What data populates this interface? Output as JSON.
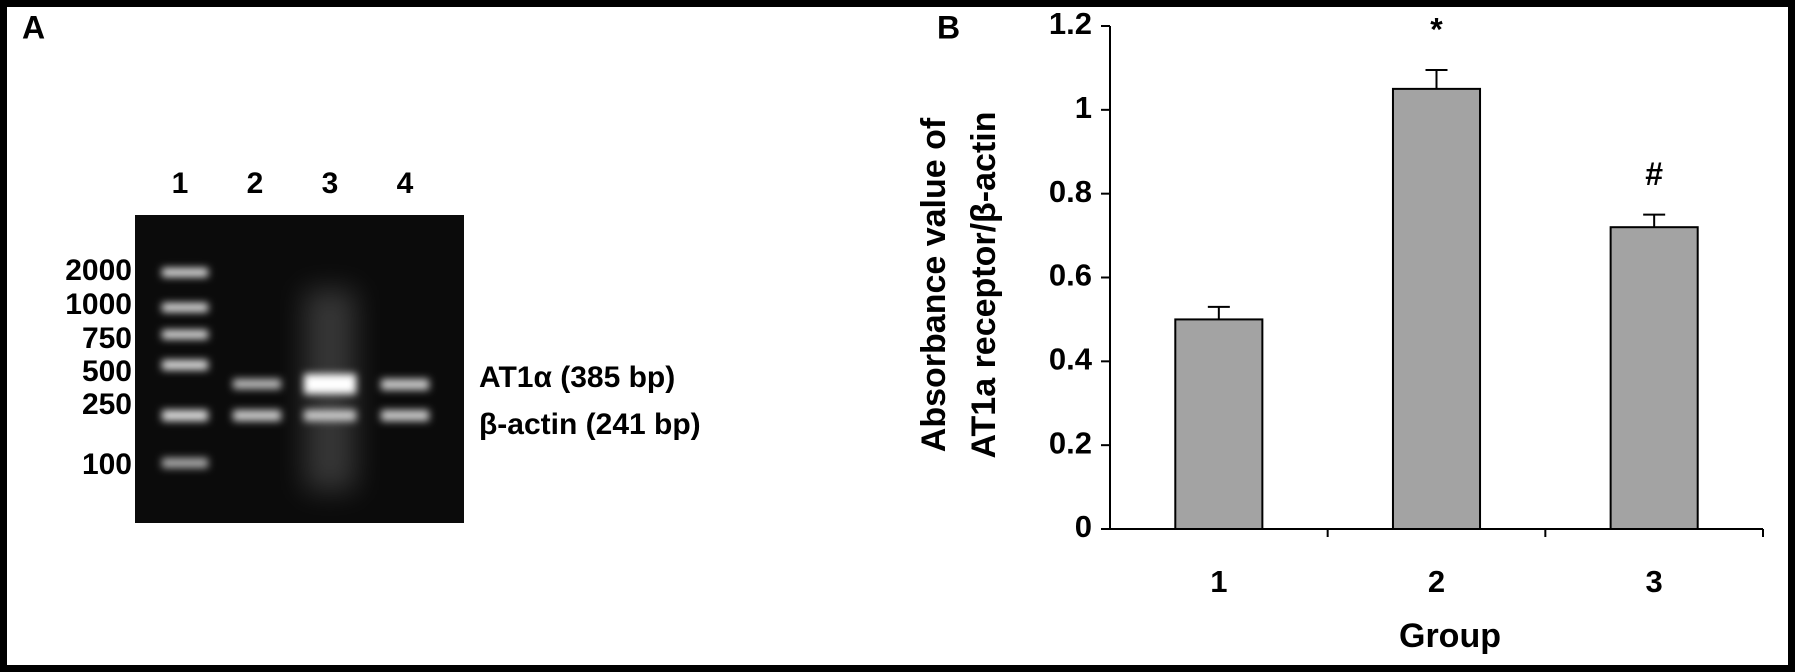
{
  "panel_a": {
    "label": "A",
    "lanes": [
      "1",
      "2",
      "3",
      "4"
    ],
    "markers": [
      "2000",
      "1000",
      "750",
      "500",
      "250",
      "100"
    ],
    "bands": [
      "AT1α (385 bp)",
      "β-actin (241 bp)"
    ]
  },
  "chart_data": {
    "type": "bar",
    "label": "B",
    "categories": [
      "1",
      "2",
      "3"
    ],
    "values": [
      0.5,
      1.05,
      0.72
    ],
    "errors": [
      0.03,
      0.045,
      0.03
    ],
    "color": "#a3a3a3",
    "ylim": [
      0,
      1.2
    ],
    "yticks": [
      0,
      0.2,
      0.4,
      0.6,
      0.8,
      1,
      1.2
    ],
    "ylabel": [
      "Absorbance value of",
      "AT1a receptor/β-actin"
    ],
    "xlabel": "Group",
    "annotations": [
      {
        "category": "2",
        "text": "*"
      },
      {
        "category": "3",
        "text": "#"
      }
    ]
  }
}
